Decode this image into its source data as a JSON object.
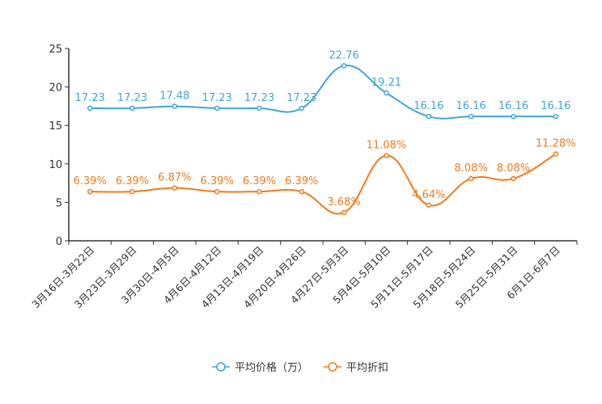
{
  "chart_data": {
    "type": "line",
    "title": "",
    "xlabel": "",
    "ylabel": "",
    "ylim": [
      0,
      25
    ],
    "yticks": [
      "0",
      "5",
      "10",
      "15",
      "20",
      "25"
    ],
    "grid": false,
    "legend_position": "bottom-center",
    "categories": [
      "3月16日-3月22日",
      "3月23日-3月29日",
      "3月30日-4月5日",
      "4月6日-4月12日",
      "4月13日-4月19日",
      "4月20日-4月26日",
      "4月27日-5月3日",
      "5月4日-5月10日",
      "5月11日-5月17日",
      "5月18日-5月24日",
      "5月25日-5月31日",
      "6月1日-6月7日"
    ],
    "series": [
      {
        "name": "平均价格（万）",
        "color": "#3fa5d4",
        "values": [
          17.23,
          17.23,
          17.48,
          17.23,
          17.23,
          17.23,
          22.76,
          19.21,
          16.16,
          16.16,
          16.16,
          16.16
        ],
        "labels": [
          "17.23",
          "17.23",
          "17.48",
          "17.23",
          "17.23",
          "17.23",
          "22.76",
          "19.21",
          "16.16",
          "16.16",
          "16.16",
          "16.16"
        ]
      },
      {
        "name": "平均折扣",
        "color": "#f07a1c",
        "values": [
          6.39,
          6.39,
          6.87,
          6.39,
          6.39,
          6.39,
          3.68,
          11.08,
          4.64,
          8.08,
          8.08,
          11.28
        ],
        "labels": [
          "6.39%",
          "6.39%",
          "6.87%",
          "6.39%",
          "6.39%",
          "6.39%",
          "3.68%",
          "11.08%",
          "4.64%",
          "8.08%",
          "8.08%",
          "11.28%"
        ]
      }
    ]
  }
}
